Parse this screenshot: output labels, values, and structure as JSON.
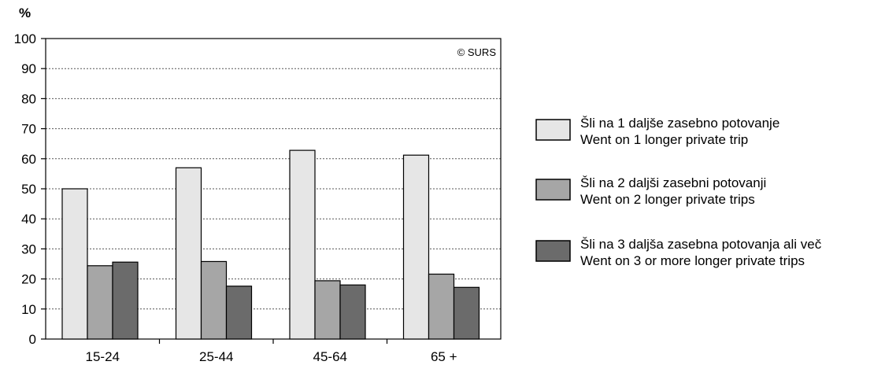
{
  "chart_data": {
    "type": "bar",
    "ylabel": "%",
    "ylim": [
      0,
      100
    ],
    "yticks": [
      0,
      10,
      20,
      30,
      40,
      50,
      60,
      70,
      80,
      90,
      100
    ],
    "grid": true,
    "legend_position": "right",
    "source": "© SURS",
    "categories": [
      "15-24",
      "25-44",
      "45-64",
      "65 +"
    ],
    "series": [
      {
        "name": "Šli na 1 daljše zasebno potovanje",
        "name_en": "Went on 1 longer private trip",
        "color": "#e6e6e6",
        "values": [
          50.0,
          57.0,
          62.8,
          61.2
        ]
      },
      {
        "name": "Šli na 2 daljši zasebni potovanji",
        "name_en": "Went on 2 longer private trips",
        "color": "#a6a6a6",
        "values": [
          24.4,
          25.8,
          19.4,
          21.6
        ]
      },
      {
        "name": "Šli na 3 daljša zasebna potovanja ali več",
        "name_en": "Went on 3 or more longer private trips",
        "color": "#6b6b6b",
        "values": [
          25.6,
          17.6,
          18.0,
          17.2
        ]
      }
    ]
  }
}
